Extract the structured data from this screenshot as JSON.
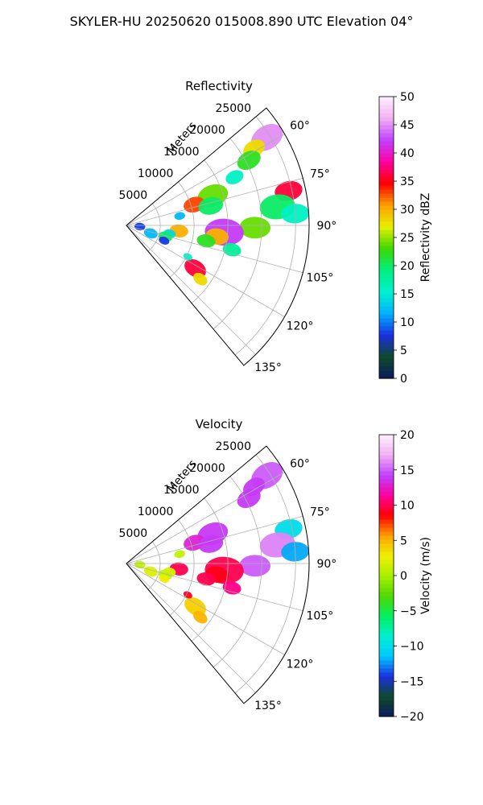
{
  "suptitle": "SKYLER-HU  20250620  015008.890 UTC Elevation 04°",
  "chart_data": [
    {
      "type": "heatmap",
      "projection": "polar-sector",
      "title": "Reflectivity",
      "radial_label": "Meters",
      "radial_ticks": [
        5000,
        10000,
        15000,
        20000,
        25000
      ],
      "radial_tick_labels": [
        "5000",
        "10000",
        "15000",
        "20000",
        "25000"
      ],
      "range_max_m": 27000,
      "azimuth_range_deg": [
        50,
        140
      ],
      "azimuth_ticks": [
        60,
        75,
        90,
        105,
        120,
        135
      ],
      "azimuth_tick_labels": [
        "60°",
        "75°",
        "90°",
        "105°",
        "120°",
        "135°"
      ],
      "colorbar": {
        "label": "Reflectivity dBZ",
        "min": 0,
        "max": 50,
        "ticks": [
          0,
          5,
          10,
          15,
          20,
          25,
          30,
          35,
          40,
          45,
          50
        ],
        "tick_labels": [
          "0",
          "5",
          "10",
          "15",
          "20",
          "25",
          "30",
          "35",
          "40",
          "45",
          "50"
        ],
        "stops": [
          "#0b1a5c",
          "#0f4a2c",
          "#1a2fe0",
          "#00b0ff",
          "#00f0d0",
          "#00f080",
          "#3cd800",
          "#e6f000",
          "#ffa000",
          "#ff0000",
          "#ff00a0",
          "#c040ff",
          "#f0b0f0",
          "#fff0ff"
        ]
      },
      "echoes": [
        {
          "az": 58,
          "r": 24500,
          "w": 2200,
          "v": 45
        },
        {
          "az": 59,
          "r": 22000,
          "w": 1500,
          "v": 28
        },
        {
          "az": 62,
          "r": 20500,
          "w": 1600,
          "v": 22
        },
        {
          "az": 66,
          "r": 17500,
          "w": 1200,
          "v": 16
        },
        {
          "az": 71,
          "r": 13500,
          "w": 2000,
          "v": 24
        },
        {
          "az": 73,
          "r": 10500,
          "w": 1400,
          "v": 33
        },
        {
          "az": 77,
          "r": 12800,
          "w": 1600,
          "v": 20
        },
        {
          "az": 80,
          "r": 8000,
          "w": 700,
          "v": 12
        },
        {
          "az": 78,
          "r": 24500,
          "w": 1800,
          "v": 36
        },
        {
          "az": 83,
          "r": 22500,
          "w": 2300,
          "v": 20
        },
        {
          "az": 86,
          "r": 25000,
          "w": 1800,
          "v": 16
        },
        {
          "az": 91,
          "r": 19000,
          "w": 2000,
          "v": 24
        },
        {
          "az": 94,
          "r": 14500,
          "w": 2500,
          "v": 42
        },
        {
          "az": 97,
          "r": 13500,
          "w": 1500,
          "v": 30
        },
        {
          "az": 101,
          "r": 12000,
          "w": 1200,
          "v": 22
        },
        {
          "az": 103,
          "r": 16000,
          "w": 1200,
          "v": 18
        },
        {
          "az": 96,
          "r": 7800,
          "w": 1200,
          "v": 30
        },
        {
          "az": 101,
          "r": 6500,
          "w": 800,
          "v": 14
        },
        {
          "az": 106,
          "r": 6000,
          "w": 900,
          "v": 20
        },
        {
          "az": 108,
          "r": 3800,
          "w": 900,
          "v": 12
        },
        {
          "az": 112,
          "r": 6000,
          "w": 700,
          "v": 8
        },
        {
          "az": 95,
          "r": 2000,
          "w": 700,
          "v": 8
        },
        {
          "az": 122,
          "r": 12000,
          "w": 1500,
          "v": 36
        },
        {
          "az": 126,
          "r": 13500,
          "w": 1000,
          "v": 28
        },
        {
          "az": 117,
          "r": 10200,
          "w": 600,
          "v": 16
        }
      ]
    },
    {
      "type": "heatmap",
      "projection": "polar-sector",
      "title": "Velocity",
      "radial_label": "Meters",
      "radial_ticks": [
        5000,
        10000,
        15000,
        20000,
        25000
      ],
      "radial_tick_labels": [
        "5000",
        "10000",
        "15000",
        "20000",
        "25000"
      ],
      "range_max_m": 27000,
      "azimuth_range_deg": [
        50,
        140
      ],
      "azimuth_ticks": [
        60,
        75,
        90,
        105,
        120,
        135
      ],
      "azimuth_tick_labels": [
        "60°",
        "75°",
        "90°",
        "105°",
        "120°",
        "135°"
      ],
      "colorbar": {
        "label": "Velocity (m/s)",
        "min": -20,
        "max": 20,
        "ticks": [
          -20,
          -15,
          -10,
          -5,
          0,
          5,
          10,
          15,
          20
        ],
        "tick_labels": [
          "−20",
          "−15",
          "−10",
          "−5",
          "0",
          "5",
          "10",
          "15",
          "20"
        ],
        "stops": [
          "#0b1a5c",
          "#0f4a2c",
          "#1a2fe0",
          "#00c8ff",
          "#00f0d0",
          "#00f060",
          "#50d800",
          "#a8f000",
          "#f0f000",
          "#ffa000",
          "#ff0000",
          "#ff00a0",
          "#c040ff",
          "#f0b0f0",
          "#fff0ff"
        ]
      },
      "echoes": [
        {
          "az": 58,
          "r": 24500,
          "w": 2200,
          "v": 15
        },
        {
          "az": 59,
          "r": 22000,
          "w": 1500,
          "v": 14
        },
        {
          "az": 62,
          "r": 20500,
          "w": 1600,
          "v": 14
        },
        {
          "az": 71,
          "r": 13500,
          "w": 2000,
          "v": 14
        },
        {
          "az": 73,
          "r": 10500,
          "w": 1400,
          "v": 13
        },
        {
          "az": 77,
          "r": 12800,
          "w": 1600,
          "v": 14
        },
        {
          "az": 80,
          "r": 8000,
          "w": 700,
          "v": 1
        },
        {
          "az": 78,
          "r": 24500,
          "w": 1800,
          "v": -10
        },
        {
          "az": 83,
          "r": 22500,
          "w": 2300,
          "v": 16
        },
        {
          "az": 86,
          "r": 25000,
          "w": 1800,
          "v": -12
        },
        {
          "az": 91,
          "r": 19000,
          "w": 2000,
          "v": 15
        },
        {
          "az": 94,
          "r": 14500,
          "w": 2500,
          "v": 10
        },
        {
          "az": 97,
          "r": 13500,
          "w": 1500,
          "v": 9
        },
        {
          "az": 101,
          "r": 12000,
          "w": 1200,
          "v": 10
        },
        {
          "az": 103,
          "r": 16000,
          "w": 1200,
          "v": 11
        },
        {
          "az": 96,
          "r": 7800,
          "w": 1200,
          "v": 10
        },
        {
          "az": 101,
          "r": 6500,
          "w": 800,
          "v": 2
        },
        {
          "az": 106,
          "r": 6000,
          "w": 900,
          "v": 1
        },
        {
          "az": 108,
          "r": 3800,
          "w": 900,
          "v": 2
        },
        {
          "az": 112,
          "r": 6000,
          "w": 700,
          "v": 3
        },
        {
          "az": 95,
          "r": 2000,
          "w": 700,
          "v": 1
        },
        {
          "az": 122,
          "r": 12000,
          "w": 1500,
          "v": 4
        },
        {
          "az": 126,
          "r": 13500,
          "w": 1000,
          "v": 5
        },
        {
          "az": 117,
          "r": 10200,
          "w": 600,
          "v": 9
        }
      ]
    }
  ]
}
